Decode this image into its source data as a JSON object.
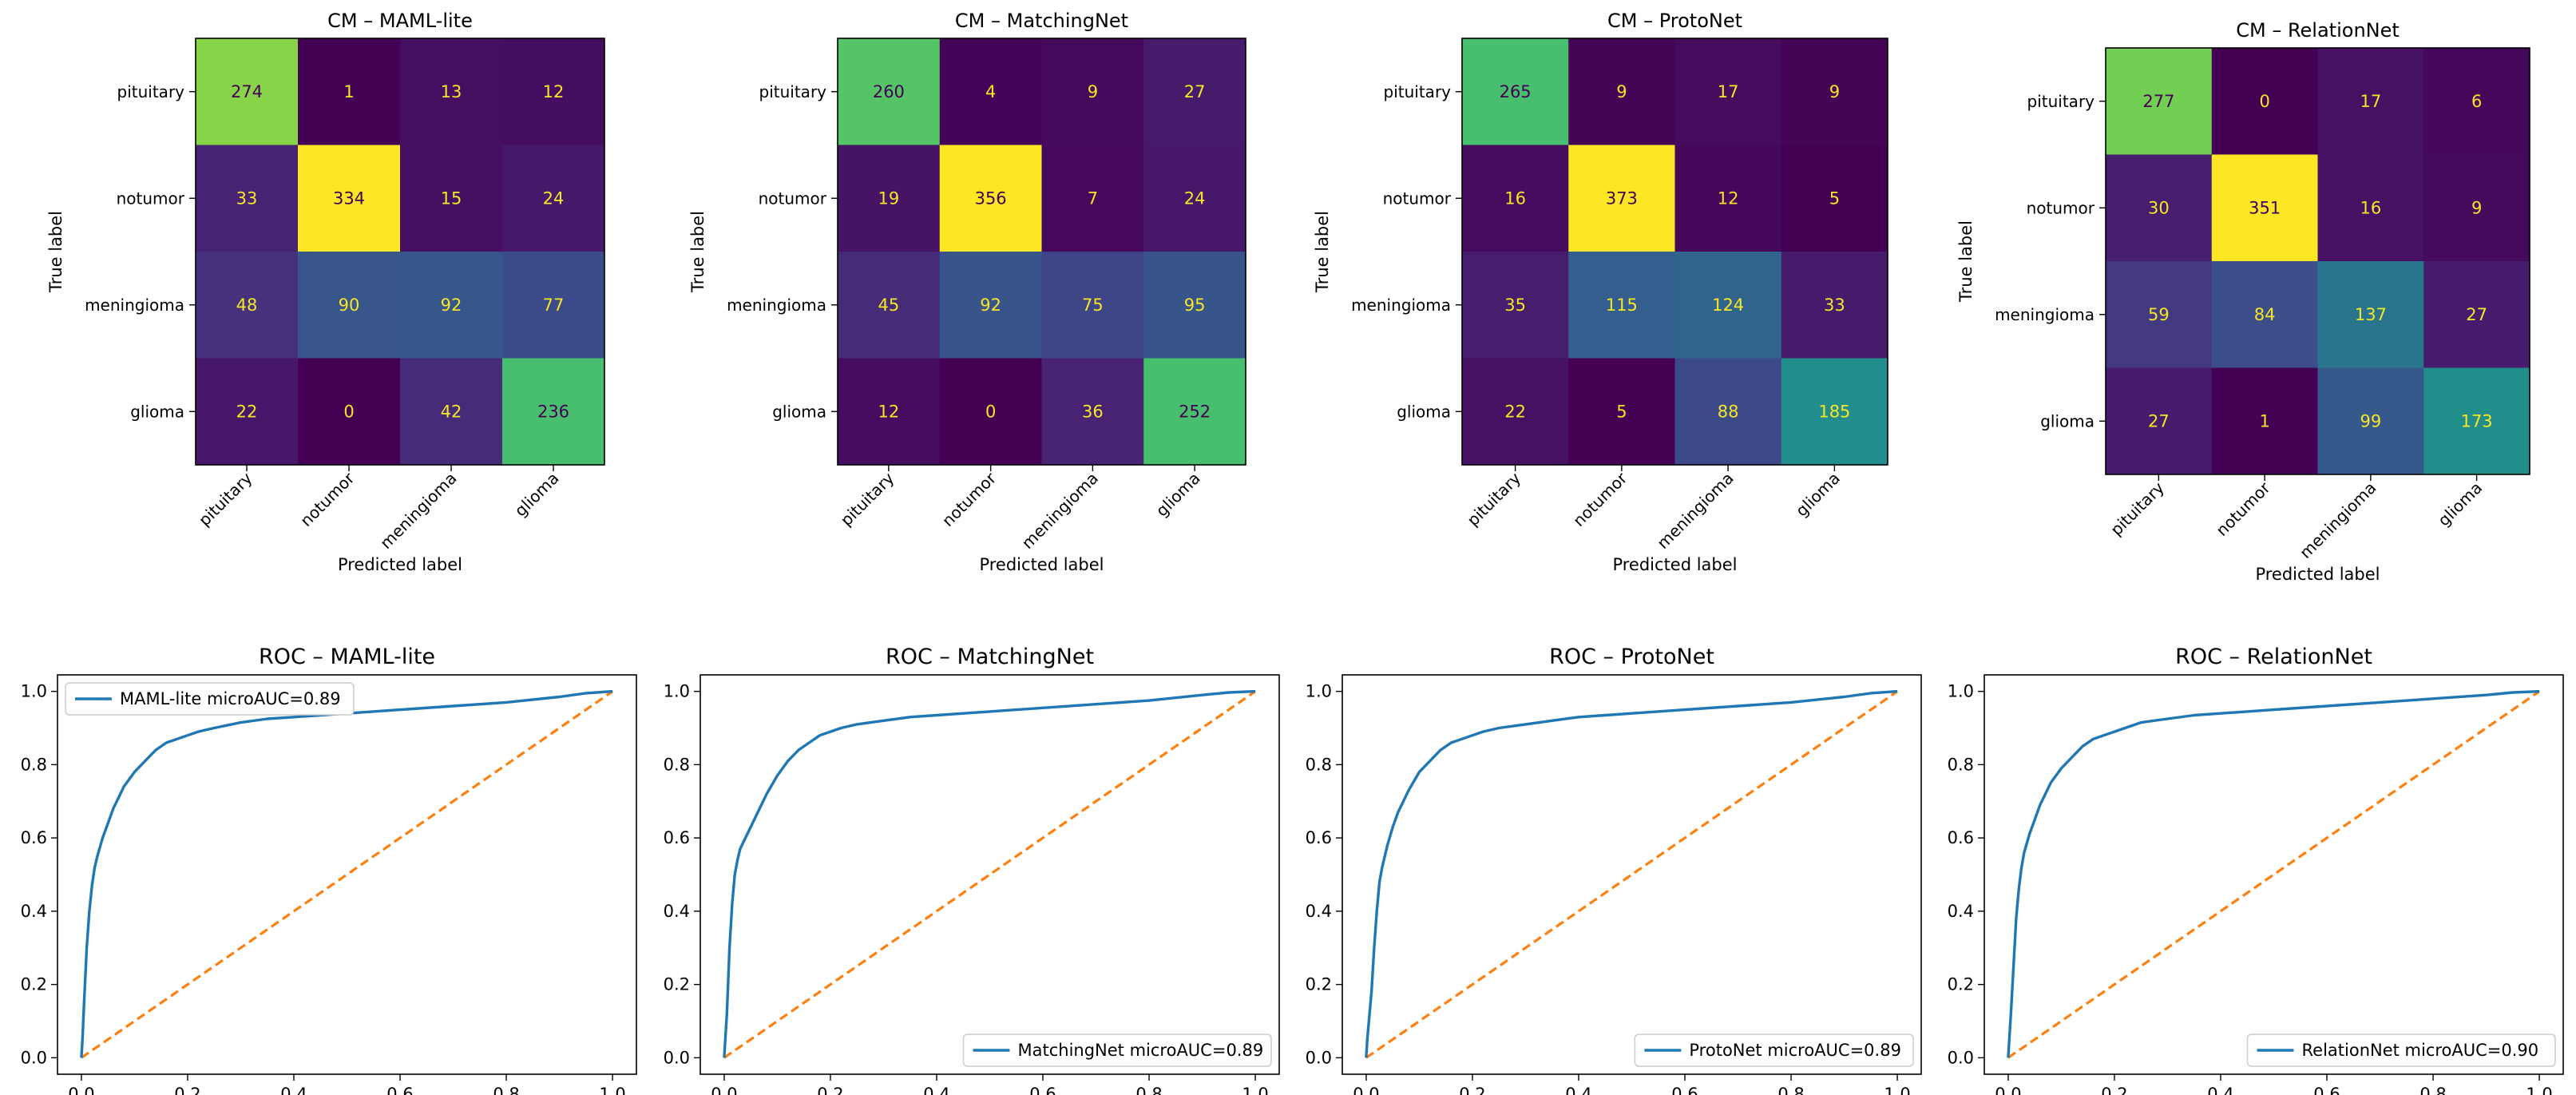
{
  "figure": {
    "cm_xlabel": "Predicted label",
    "cm_ylabel": "True label",
    "classes": [
      "pituitary",
      "notumor",
      "meningioma",
      "glioma"
    ],
    "colors": {
      "roc_line": "#1f77b4",
      "diagonal": "#ff7f0e",
      "cm_text_light": "#f5e626",
      "cm_text_dark": "#440154"
    },
    "colormap": "viridis"
  },
  "chart_data": [
    {
      "type": "heatmap",
      "title": "CM – MAML-lite",
      "xlabel": "Predicted label",
      "ylabel": "True label",
      "x_categories": [
        "pituitary",
        "notumor",
        "meningioma",
        "glioma"
      ],
      "y_categories": [
        "pituitary",
        "notumor",
        "meningioma",
        "glioma"
      ],
      "values": [
        [
          274,
          1,
          13,
          12
        ],
        [
          33,
          334,
          15,
          24
        ],
        [
          48,
          90,
          92,
          77
        ],
        [
          22,
          0,
          42,
          236
        ]
      ],
      "colormap": "viridis"
    },
    {
      "type": "heatmap",
      "title": "CM – MatchingNet",
      "xlabel": "Predicted label",
      "ylabel": "True label",
      "x_categories": [
        "pituitary",
        "notumor",
        "meningioma",
        "glioma"
      ],
      "y_categories": [
        "pituitary",
        "notumor",
        "meningioma",
        "glioma"
      ],
      "values": [
        [
          260,
          4,
          9,
          27
        ],
        [
          19,
          356,
          7,
          24
        ],
        [
          45,
          92,
          75,
          95
        ],
        [
          12,
          0,
          36,
          252
        ]
      ],
      "colormap": "viridis"
    },
    {
      "type": "heatmap",
      "title": "CM – ProtoNet",
      "xlabel": "Predicted label",
      "ylabel": "True label",
      "x_categories": [
        "pituitary",
        "notumor",
        "meningioma",
        "glioma"
      ],
      "y_categories": [
        "pituitary",
        "notumor",
        "meningioma",
        "glioma"
      ],
      "values": [
        [
          265,
          9,
          17,
          9
        ],
        [
          16,
          373,
          12,
          5
        ],
        [
          35,
          115,
          124,
          33
        ],
        [
          22,
          5,
          88,
          185
        ]
      ],
      "colormap": "viridis"
    },
    {
      "type": "heatmap",
      "title": "CM – RelationNet",
      "xlabel": "Predicted label",
      "ylabel": "True label",
      "x_categories": [
        "pituitary",
        "notumor",
        "meningioma",
        "glioma"
      ],
      "y_categories": [
        "pituitary",
        "notumor",
        "meningioma",
        "glioma"
      ],
      "values": [
        [
          277,
          0,
          17,
          6
        ],
        [
          30,
          351,
          16,
          9
        ],
        [
          59,
          84,
          137,
          27
        ],
        [
          27,
          1,
          99,
          173
        ]
      ],
      "colormap": "viridis"
    },
    {
      "type": "line",
      "title": "ROC – MAML-lite",
      "xlim": [
        0,
        1
      ],
      "ylim": [
        0,
        1
      ],
      "xticks": [
        "0.0",
        "0.2",
        "0.4",
        "0.6",
        "0.8",
        "1.0"
      ],
      "yticks": [
        "0.0",
        "0.2",
        "0.4",
        "0.6",
        "0.8",
        "1.0"
      ],
      "legend_loc": "upper left",
      "series": [
        {
          "name": "MAML-lite microAUC=0.89",
          "x": [
            0,
            0.002,
            0.005,
            0.01,
            0.015,
            0.02,
            0.025,
            0.03,
            0.04,
            0.05,
            0.06,
            0.07,
            0.08,
            0.1,
            0.12,
            0.14,
            0.16,
            0.18,
            0.2,
            0.22,
            0.25,
            0.3,
            0.35,
            0.4,
            0.45,
            0.5,
            0.6,
            0.7,
            0.8,
            0.9,
            0.95,
            1.0
          ],
          "y": [
            0,
            0.05,
            0.15,
            0.3,
            0.4,
            0.47,
            0.52,
            0.55,
            0.6,
            0.64,
            0.68,
            0.71,
            0.74,
            0.78,
            0.81,
            0.84,
            0.86,
            0.87,
            0.88,
            0.89,
            0.9,
            0.915,
            0.925,
            0.93,
            0.935,
            0.94,
            0.95,
            0.96,
            0.97,
            0.985,
            0.995,
            1.0
          ]
        }
      ]
    },
    {
      "type": "line",
      "title": "ROC – MatchingNet",
      "xlim": [
        0,
        1
      ],
      "ylim": [
        0,
        1
      ],
      "xticks": [
        "0.0",
        "0.2",
        "0.4",
        "0.6",
        "0.8",
        "1.0"
      ],
      "yticks": [
        "0.0",
        "0.2",
        "0.4",
        "0.6",
        "0.8",
        "1.0"
      ],
      "legend_loc": "lower right",
      "series": [
        {
          "name": "MatchingNet microAUC=0.89",
          "x": [
            0,
            0.002,
            0.005,
            0.01,
            0.015,
            0.02,
            0.025,
            0.03,
            0.04,
            0.05,
            0.06,
            0.07,
            0.08,
            0.1,
            0.12,
            0.14,
            0.16,
            0.18,
            0.2,
            0.22,
            0.25,
            0.3,
            0.35,
            0.4,
            0.45,
            0.5,
            0.6,
            0.7,
            0.8,
            0.9,
            0.95,
            1.0
          ],
          "y": [
            0,
            0.05,
            0.12,
            0.3,
            0.42,
            0.5,
            0.54,
            0.57,
            0.6,
            0.63,
            0.66,
            0.69,
            0.72,
            0.77,
            0.81,
            0.84,
            0.86,
            0.88,
            0.89,
            0.9,
            0.91,
            0.92,
            0.93,
            0.935,
            0.94,
            0.945,
            0.955,
            0.965,
            0.975,
            0.99,
            0.997,
            1.0
          ]
        }
      ]
    },
    {
      "type": "line",
      "title": "ROC – ProtoNet",
      "xlim": [
        0,
        1
      ],
      "ylim": [
        0,
        1
      ],
      "xticks": [
        "0.0",
        "0.2",
        "0.4",
        "0.6",
        "0.8",
        "1.0"
      ],
      "yticks": [
        "0.0",
        "0.2",
        "0.4",
        "0.6",
        "0.8",
        "1.0"
      ],
      "legend_loc": "lower right",
      "series": [
        {
          "name": "ProtoNet microAUC=0.89",
          "x": [
            0,
            0.002,
            0.005,
            0.01,
            0.015,
            0.02,
            0.025,
            0.03,
            0.04,
            0.05,
            0.06,
            0.07,
            0.08,
            0.1,
            0.12,
            0.14,
            0.16,
            0.18,
            0.2,
            0.22,
            0.25,
            0.3,
            0.35,
            0.4,
            0.45,
            0.5,
            0.6,
            0.7,
            0.8,
            0.9,
            0.95,
            1.0
          ],
          "y": [
            0,
            0.05,
            0.1,
            0.18,
            0.3,
            0.4,
            0.48,
            0.52,
            0.58,
            0.63,
            0.67,
            0.7,
            0.73,
            0.78,
            0.81,
            0.84,
            0.86,
            0.87,
            0.88,
            0.89,
            0.9,
            0.91,
            0.92,
            0.93,
            0.935,
            0.94,
            0.95,
            0.96,
            0.97,
            0.985,
            0.995,
            1.0
          ]
        }
      ]
    },
    {
      "type": "line",
      "title": "ROC – RelationNet",
      "xlim": [
        0,
        1
      ],
      "ylim": [
        0,
        1
      ],
      "xticks": [
        "0.0",
        "0.2",
        "0.4",
        "0.6",
        "0.8",
        "1.0"
      ],
      "yticks": [
        "0.0",
        "0.2",
        "0.4",
        "0.6",
        "0.8",
        "1.0"
      ],
      "legend_loc": "lower right",
      "series": [
        {
          "name": "RelationNet microAUC=0.90",
          "x": [
            0,
            0.002,
            0.005,
            0.01,
            0.015,
            0.02,
            0.025,
            0.03,
            0.04,
            0.05,
            0.06,
            0.07,
            0.08,
            0.1,
            0.12,
            0.14,
            0.16,
            0.18,
            0.2,
            0.22,
            0.25,
            0.3,
            0.35,
            0.4,
            0.45,
            0.5,
            0.6,
            0.7,
            0.8,
            0.9,
            0.95,
            1.0
          ],
          "y": [
            0,
            0.05,
            0.12,
            0.25,
            0.38,
            0.46,
            0.52,
            0.56,
            0.61,
            0.65,
            0.69,
            0.72,
            0.75,
            0.79,
            0.82,
            0.85,
            0.87,
            0.88,
            0.89,
            0.9,
            0.915,
            0.925,
            0.935,
            0.94,
            0.945,
            0.95,
            0.96,
            0.97,
            0.98,
            0.99,
            0.997,
            1.0
          ]
        }
      ]
    }
  ]
}
